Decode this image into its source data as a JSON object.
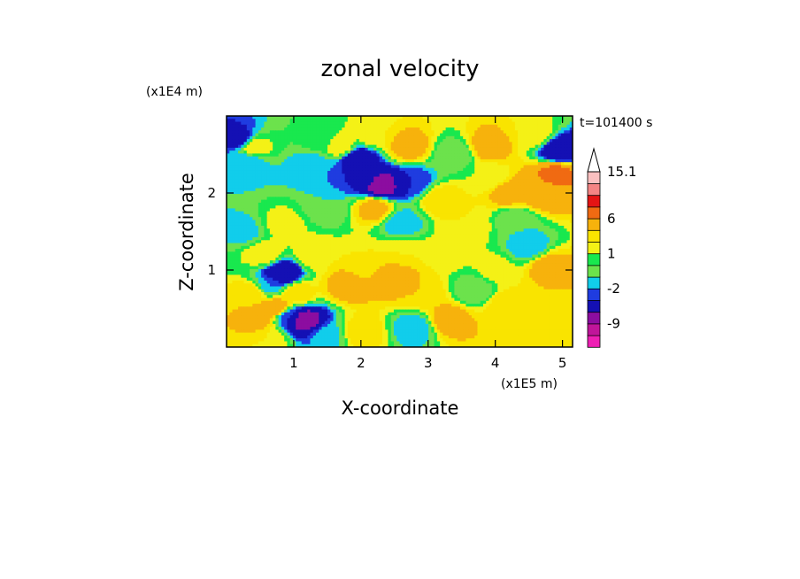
{
  "chart_data": {
    "type": "heatmap",
    "title": "zonal velocity",
    "xlabel": "X-coordinate",
    "ylabel": "Z-coordinate",
    "x_multiplier": "(x1E5 m)",
    "y_multiplier": "(x1E4 m)",
    "time_label": "t=101400 s",
    "xlim": [
      0,
      5.15
    ],
    "ylim": [
      0,
      3.0
    ],
    "xticks": [
      1,
      2,
      3,
      4,
      5
    ],
    "xtick_labels": [
      "1",
      "2",
      "3",
      "4",
      "5"
    ],
    "yticks": [
      1,
      2
    ],
    "ytick_labels": [
      "1",
      "2"
    ],
    "colorbar": {
      "levels": [
        -15,
        -12,
        -9,
        -6,
        -3,
        -2,
        -1,
        0,
        1,
        2,
        3,
        6,
        9,
        12,
        15.1
      ],
      "colors": [
        "#ee1fb4",
        "#c0159a",
        "#8c0da0",
        "#1410b4",
        "#1f3ce0",
        "#11cdeb",
        "#6ce24c",
        "#19e84e",
        "#f4f116",
        "#f9e400",
        "#f7b20c",
        "#f06a12",
        "#e41414",
        "#f48484",
        "#fbc0c0"
      ],
      "tick_labels": [
        "15.1",
        "6",
        "1",
        "-2",
        "-9"
      ],
      "tick_values": [
        15.1,
        6,
        1,
        -2,
        -9
      ],
      "extend": "max"
    },
    "regions": [
      {
        "x": 0.18,
        "z": 2.7,
        "value": -4
      },
      {
        "x": 0.3,
        "z": 2.4,
        "value": -2
      },
      {
        "x": 0.25,
        "z": 1.5,
        "value": -1.5
      },
      {
        "x": 0.4,
        "z": 2.6,
        "value": 2
      },
      {
        "x": 0.35,
        "z": 0.7,
        "value": 3
      },
      {
        "x": 0.45,
        "z": 0.35,
        "value": 4
      },
      {
        "x": 0.55,
        "z": 1.2,
        "value": 2
      },
      {
        "x": 0.65,
        "z": 0.8,
        "value": -2
      },
      {
        "x": 0.75,
        "z": 0.5,
        "value": 5
      },
      {
        "x": 0.82,
        "z": 0.95,
        "value": -6
      },
      {
        "x": 0.92,
        "z": 0.4,
        "value": -3
      },
      {
        "x": 1.15,
        "z": 0.35,
        "value": -8
      },
      {
        "x": 1.05,
        "z": 0.7,
        "value": 3
      },
      {
        "x": 0.85,
        "z": 1.6,
        "value": 1.5
      },
      {
        "x": 1.3,
        "z": 1.2,
        "value": 2
      },
      {
        "x": 1.5,
        "z": 1.8,
        "value": -1
      },
      {
        "x": 1.3,
        "z": 2.35,
        "value": -2
      },
      {
        "x": 1.4,
        "z": 2.7,
        "value": 0.5
      },
      {
        "x": 1.7,
        "z": 2.6,
        "value": 2
      },
      {
        "x": 1.95,
        "z": 2.45,
        "value": -5
      },
      {
        "x": 2.0,
        "z": 2.2,
        "value": -3
      },
      {
        "x": 2.3,
        "z": 2.1,
        "value": -8
      },
      {
        "x": 2.2,
        "z": 2.75,
        "value": 2
      },
      {
        "x": 2.7,
        "z": 2.6,
        "value": 4
      },
      {
        "x": 2.75,
        "z": 2.15,
        "value": -3
      },
      {
        "x": 2.2,
        "z": 1.8,
        "value": 4
      },
      {
        "x": 2.6,
        "z": 1.6,
        "value": -2
      },
      {
        "x": 3.2,
        "z": 1.9,
        "value": 3
      },
      {
        "x": 3.4,
        "z": 2.5,
        "value": -1
      },
      {
        "x": 3.9,
        "z": 2.6,
        "value": 4
      },
      {
        "x": 4.2,
        "z": 2.0,
        "value": 4
      },
      {
        "x": 4.7,
        "z": 2.0,
        "value": 5
      },
      {
        "x": 4.9,
        "z": 2.25,
        "value": 7
      },
      {
        "x": 4.95,
        "z": 2.55,
        "value": -6
      },
      {
        "x": 4.6,
        "z": 2.75,
        "value": 2
      },
      {
        "x": 3.3,
        "z": 1.25,
        "value": 1.5
      },
      {
        "x": 2.1,
        "z": 1.05,
        "value": 2
      },
      {
        "x": 1.8,
        "z": 0.8,
        "value": 4
      },
      {
        "x": 2.4,
        "z": 0.9,
        "value": 5
      },
      {
        "x": 2.9,
        "z": 0.7,
        "value": 3
      },
      {
        "x": 3.7,
        "z": 0.75,
        "value": -1
      },
      {
        "x": 4.0,
        "z": 1.0,
        "value": 1.5
      },
      {
        "x": 4.5,
        "z": 1.3,
        "value": -2
      },
      {
        "x": 4.8,
        "z": 1.05,
        "value": 4
      },
      {
        "x": 4.2,
        "z": 0.55,
        "value": 3
      },
      {
        "x": 4.75,
        "z": 0.3,
        "value": 2
      },
      {
        "x": 3.3,
        "z": 0.35,
        "value": 4
      },
      {
        "x": 2.0,
        "z": 0.2,
        "value": 3
      },
      {
        "x": 1.5,
        "z": 0.15,
        "value": -1.5
      },
      {
        "x": 0.6,
        "z": 0.1,
        "value": 2
      },
      {
        "x": 2.8,
        "z": 0.25,
        "value": -2
      },
      {
        "x": 3.6,
        "z": 1.6,
        "value": 2
      },
      {
        "x": 4.3,
        "z": 1.65,
        "value": -1
      },
      {
        "x": 3.9,
        "z": 2.2,
        "value": 1
      },
      {
        "x": 2.6,
        "z": 1.25,
        "value": 2
      }
    ]
  }
}
